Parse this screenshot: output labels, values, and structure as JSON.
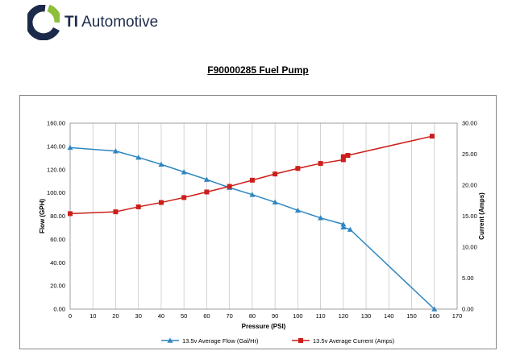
{
  "brand": {
    "name_bold": "TI",
    "name_rest": " Automotive",
    "logo_colors": {
      "green": "#8dbe3c",
      "navy": "#1c2a4a"
    }
  },
  "page_title": "F90000285 Fuel Pump",
  "chart_data": {
    "type": "line",
    "title": "",
    "xlabel": "Pressure (PSI)",
    "ylabel_left": "Flow (GPH)",
    "ylabel_right": "Current (Amps)",
    "xlim": [
      0,
      170
    ],
    "ylim_left": [
      0,
      160
    ],
    "ylim_right": [
      0,
      30
    ],
    "x_ticks": [
      "0",
      "10",
      "20",
      "30",
      "40",
      "50",
      "60",
      "70",
      "80",
      "90",
      "100",
      "110",
      "120",
      "130",
      "140",
      "150",
      "160",
      "170"
    ],
    "y_ticks_left": [
      "0.00",
      "20.00",
      "40.00",
      "60.00",
      "80.00",
      "100.00",
      "120.00",
      "140.00",
      "160.00"
    ],
    "y_ticks_right": [
      "0.00",
      "5.00",
      "10.00",
      "15.00",
      "20.00",
      "25.00",
      "30.00"
    ],
    "grid": "vertical",
    "legend_position": "bottom",
    "series": [
      {
        "name": "13.5v Average Flow (Gal/Hr)",
        "axis": "left",
        "color": "#2e86c1",
        "marker": "triangle",
        "x": [
          0,
          20,
          30,
          40,
          50,
          60,
          70,
          80,
          90,
          100,
          110,
          120,
          120,
          123,
          160
        ],
        "y": [
          139,
          136,
          130.5,
          124.5,
          118,
          111.5,
          104.5,
          98.5,
          92,
          85,
          78.5,
          73,
          70.5,
          68.5,
          0
        ]
      },
      {
        "name": "13.5v Average Current (Amps)",
        "axis": "right",
        "color": "#cc1f1a",
        "marker": "square",
        "x": [
          0,
          20,
          30,
          40,
          50,
          60,
          70,
          80,
          90,
          100,
          110,
          120,
          120,
          122,
          159
        ],
        "y": [
          15.4,
          15.7,
          16.5,
          17.2,
          18.0,
          18.9,
          19.8,
          20.8,
          21.8,
          22.7,
          23.5,
          24.1,
          24.6,
          24.8,
          27.9
        ]
      }
    ]
  }
}
